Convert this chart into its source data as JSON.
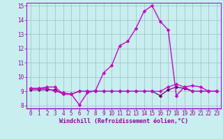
{
  "title": "",
  "xlabel": "Windchill (Refroidissement éolien,°C)",
  "ylabel": "",
  "xlim": [
    -0.5,
    23.5
  ],
  "ylim": [
    7.8,
    15.2
  ],
  "yticks": [
    8,
    9,
    10,
    11,
    12,
    13,
    14,
    15
  ],
  "xticks": [
    0,
    1,
    2,
    3,
    4,
    5,
    6,
    7,
    8,
    9,
    10,
    11,
    12,
    13,
    14,
    15,
    16,
    17,
    18,
    19,
    20,
    21,
    22,
    23
  ],
  "background_color": "#c8eef0",
  "line_color": "#cc00cc",
  "flat_line_color": "#660066",
  "grid_color": "#9abfc0",
  "line1_x": [
    0,
    1,
    2,
    3,
    4,
    5,
    6,
    7,
    8,
    9,
    10,
    11,
    12,
    13,
    14,
    15,
    16,
    17,
    18,
    19,
    20,
    21,
    22,
    23
  ],
  "line1_y": [
    9.2,
    9.2,
    9.3,
    9.3,
    8.8,
    8.8,
    8.05,
    8.9,
    9.05,
    10.3,
    10.8,
    12.2,
    12.5,
    13.4,
    14.6,
    15.0,
    13.9,
    13.3,
    8.7,
    9.3,
    9.4,
    9.3,
    9.0,
    9.0
  ],
  "line2_x": [
    0,
    1,
    2,
    3,
    4,
    5,
    6,
    7,
    8,
    9,
    10,
    11,
    12,
    13,
    14,
    15,
    16,
    17,
    18,
    19,
    20,
    21,
    22,
    23
  ],
  "line2_y": [
    9.1,
    9.1,
    9.1,
    9.1,
    8.8,
    8.8,
    9.0,
    9.0,
    9.0,
    9.0,
    9.0,
    9.0,
    9.0,
    9.0,
    9.0,
    9.0,
    8.7,
    9.1,
    9.3,
    9.2,
    9.0,
    9.0,
    9.0,
    9.0
  ],
  "line3_x": [
    0,
    1,
    2,
    3,
    4,
    5,
    6,
    7,
    8,
    9,
    10,
    11,
    12,
    13,
    14,
    15,
    16,
    17,
    18,
    19,
    20,
    21,
    22,
    23
  ],
  "line3_y": [
    9.2,
    9.2,
    9.2,
    9.0,
    8.9,
    8.8,
    9.0,
    9.0,
    9.0,
    9.0,
    9.0,
    9.0,
    9.0,
    9.0,
    9.0,
    9.0,
    9.0,
    9.3,
    9.5,
    9.3,
    9.0,
    9.0,
    9.0,
    9.0
  ],
  "xlabel_fontsize": 6,
  "tick_fontsize": 5.5,
  "tick_color": "#990099",
  "spine_color": "#9900cc"
}
